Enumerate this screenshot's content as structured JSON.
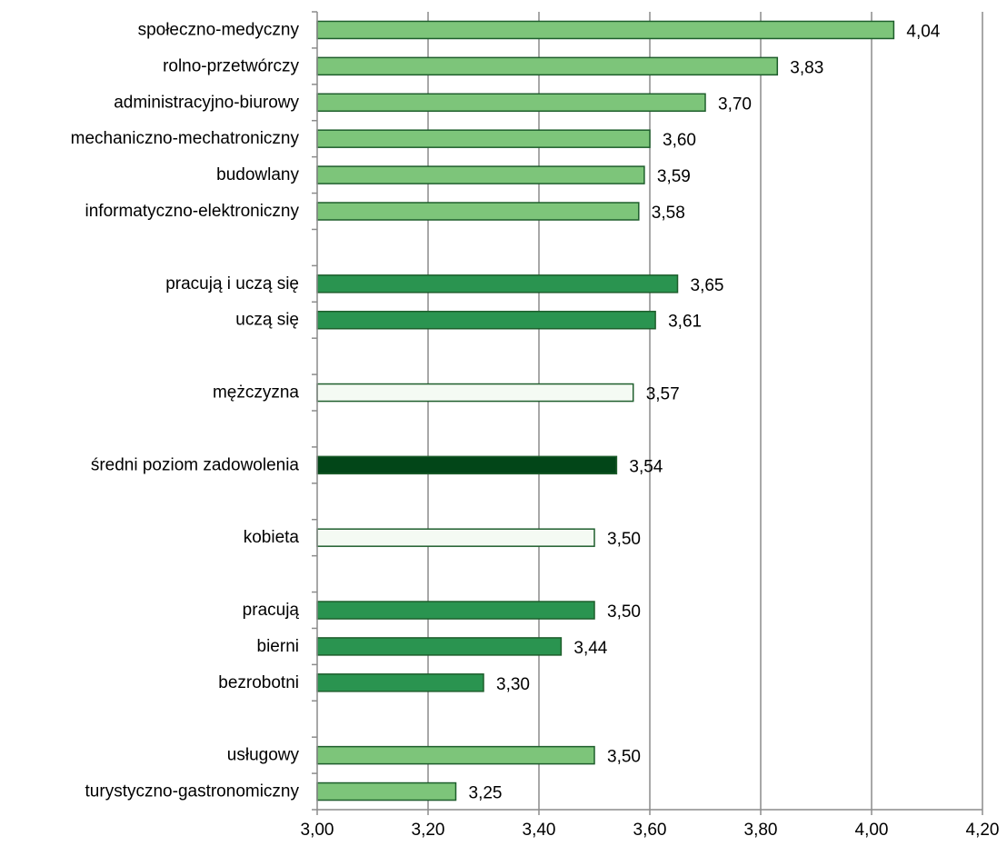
{
  "chart_data": {
    "type": "bar",
    "orientation": "horizontal",
    "xlim": [
      3.0,
      4.2
    ],
    "grid": true,
    "legend": "none",
    "x_ticks": [
      "3,00",
      "3,20",
      "3,40",
      "3,60",
      "3,80",
      "4,00",
      "4,20"
    ],
    "x_tick_values": [
      3.0,
      3.2,
      3.4,
      3.6,
      3.8,
      4.0,
      4.2
    ],
    "colors": {
      "light": "#7dc57a",
      "medium": "#2a9450",
      "white": "#f4faf3",
      "dark": "#024618",
      "border": "#1e5e2c",
      "grid": "#8c8c8c"
    },
    "rows": [
      {
        "label": "społeczno-medyczny",
        "value": 4.04,
        "value_label": "4,04",
        "style": "light"
      },
      {
        "label": "rolno-przetwórczy",
        "value": 3.83,
        "value_label": "3,83",
        "style": "light"
      },
      {
        "label": "administracyjno-biurowy",
        "value": 3.7,
        "value_label": "3,70",
        "style": "light"
      },
      {
        "label": "mechaniczno-mechatroniczny",
        "value": 3.6,
        "value_label": "3,60",
        "style": "light"
      },
      {
        "label": "budowlany",
        "value": 3.59,
        "value_label": "3,59",
        "style": "light"
      },
      {
        "label": "informatyczno-elektroniczny",
        "value": 3.58,
        "value_label": "3,58",
        "style": "light"
      },
      {
        "label": "",
        "value": null,
        "value_label": "",
        "style": "none"
      },
      {
        "label": "pracują i uczą się",
        "value": 3.65,
        "value_label": "3,65",
        "style": "medium"
      },
      {
        "label": "uczą się",
        "value": 3.61,
        "value_label": "3,61",
        "style": "medium"
      },
      {
        "label": "",
        "value": null,
        "value_label": "",
        "style": "none"
      },
      {
        "label": "mężczyzna",
        "value": 3.57,
        "value_label": "3,57",
        "style": "white"
      },
      {
        "label": "",
        "value": null,
        "value_label": "",
        "style": "none"
      },
      {
        "label": "średni poziom zadowolenia",
        "value": 3.54,
        "value_label": "3,54",
        "style": "dark"
      },
      {
        "label": "",
        "value": null,
        "value_label": "",
        "style": "none"
      },
      {
        "label": "kobieta",
        "value": 3.5,
        "value_label": "3,50",
        "style": "white"
      },
      {
        "label": "",
        "value": null,
        "value_label": "",
        "style": "none"
      },
      {
        "label": "pracują",
        "value": 3.5,
        "value_label": "3,50",
        "style": "medium"
      },
      {
        "label": "bierni",
        "value": 3.44,
        "value_label": "3,44",
        "style": "medium"
      },
      {
        "label": "bezrobotni",
        "value": 3.3,
        "value_label": "3,30",
        "style": "medium"
      },
      {
        "label": "",
        "value": null,
        "value_label": "",
        "style": "none"
      },
      {
        "label": "usługowy",
        "value": 3.5,
        "value_label": "3,50",
        "style": "light"
      },
      {
        "label": "turystyczno-gastronomiczny",
        "value": 3.25,
        "value_label": "3,25",
        "style": "light"
      }
    ]
  }
}
